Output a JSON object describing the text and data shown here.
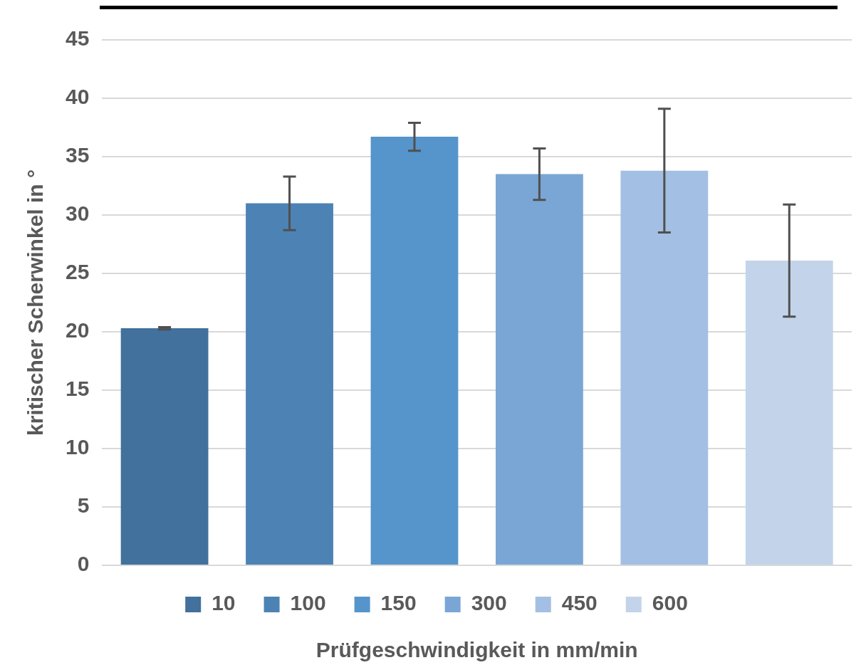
{
  "chart_data": {
    "type": "bar",
    "xlabel": "Prüfgeschwindigkeit in mm/min",
    "ylabel": "kritischer Scherwinkel in °",
    "categories": [
      null
    ],
    "series": [
      {
        "name": "10",
        "color": "#41719c",
        "values": [
          20.3
        ],
        "errors": [
          0.1
        ]
      },
      {
        "name": "100",
        "color": "#4d82b5",
        "values": [
          31.0
        ],
        "errors": [
          2.3
        ]
      },
      {
        "name": "150",
        "color": "#5694cc",
        "values": [
          36.7
        ],
        "errors": [
          1.2
        ]
      },
      {
        "name": "300",
        "color": "#7aa6d6",
        "values": [
          33.5
        ],
        "errors": [
          2.2
        ]
      },
      {
        "name": "450",
        "color": "#a3bfe3",
        "values": [
          33.8
        ],
        "errors": [
          5.3
        ]
      },
      {
        "name": "600",
        "color": "#c3d4ea",
        "values": [
          26.1
        ],
        "errors": [
          4.8
        ]
      }
    ],
    "ylim": [
      0,
      45
    ],
    "yticks": [
      0,
      5,
      10,
      15,
      20,
      25,
      30,
      35,
      40,
      45
    ],
    "grid": "y",
    "legend": "bottom",
    "tick_labels": "y"
  }
}
